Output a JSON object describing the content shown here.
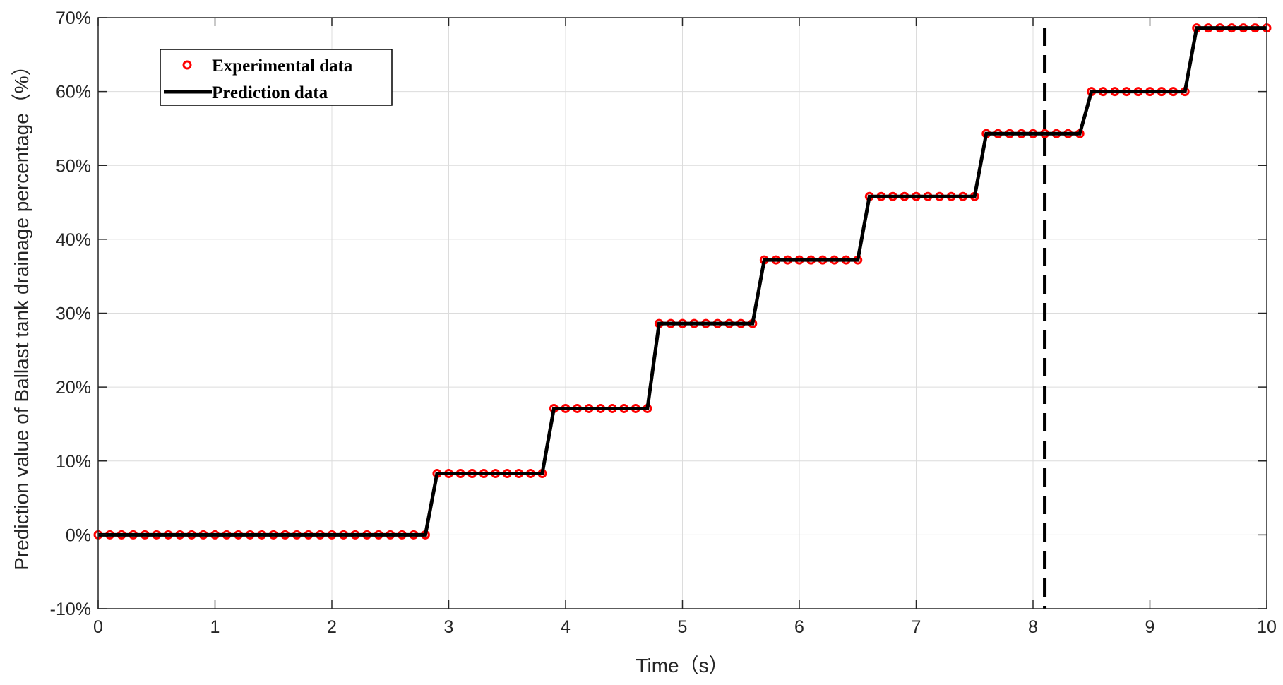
{
  "chart_data": {
    "type": "line",
    "title": "",
    "xlabel": "Time（s）",
    "ylabel": "Prediction value of Ballast tank drainage percentage（%）",
    "xlim": [
      0,
      10
    ],
    "ylim": [
      -10,
      70
    ],
    "x_ticks": [
      0,
      1,
      2,
      3,
      4,
      5,
      6,
      7,
      8,
      9,
      10
    ],
    "x_tick_labels": [
      "0",
      "1",
      "2",
      "3",
      "4",
      "5",
      "6",
      "7",
      "8",
      "9",
      "10"
    ],
    "y_ticks": [
      -10,
      0,
      10,
      20,
      30,
      40,
      50,
      60,
      70
    ],
    "y_tick_labels": [
      "-10%",
      "0%",
      "10%",
      "20%",
      "30%",
      "40%",
      "50%",
      "60%",
      "70%"
    ],
    "grid": true,
    "legend_position": "top-left",
    "vertical_marker": {
      "x": 8.1,
      "style": "dashed",
      "color": "#000000"
    },
    "series": [
      {
        "name": "Experimental data",
        "style": "markers",
        "marker": "circle",
        "color": "#ff0000",
        "points": [
          [
            0,
            0
          ],
          [
            0.1,
            0
          ],
          [
            0.2,
            0
          ],
          [
            0.3,
            0
          ],
          [
            0.4,
            0
          ],
          [
            0.5,
            0
          ],
          [
            0.6,
            0
          ],
          [
            0.7,
            0
          ],
          [
            0.8,
            0
          ],
          [
            0.9,
            0
          ],
          [
            1.0,
            0
          ],
          [
            1.1,
            0
          ],
          [
            1.2,
            0
          ],
          [
            1.3,
            0
          ],
          [
            1.4,
            0
          ],
          [
            1.5,
            0
          ],
          [
            1.6,
            0
          ],
          [
            1.7,
            0
          ],
          [
            1.8,
            0
          ],
          [
            1.9,
            0
          ],
          [
            2.0,
            0
          ],
          [
            2.1,
            0
          ],
          [
            2.2,
            0
          ],
          [
            2.3,
            0
          ],
          [
            2.4,
            0
          ],
          [
            2.5,
            0
          ],
          [
            2.6,
            0
          ],
          [
            2.7,
            0
          ],
          [
            2.8,
            0
          ],
          [
            2.9,
            8.3
          ],
          [
            3.0,
            8.3
          ],
          [
            3.1,
            8.3
          ],
          [
            3.2,
            8.3
          ],
          [
            3.3,
            8.3
          ],
          [
            3.4,
            8.3
          ],
          [
            3.5,
            8.3
          ],
          [
            3.6,
            8.3
          ],
          [
            3.7,
            8.3
          ],
          [
            3.8,
            8.3
          ],
          [
            3.9,
            17.1
          ],
          [
            4.0,
            17.1
          ],
          [
            4.1,
            17.1
          ],
          [
            4.2,
            17.1
          ],
          [
            4.3,
            17.1
          ],
          [
            4.4,
            17.1
          ],
          [
            4.5,
            17.1
          ],
          [
            4.6,
            17.1
          ],
          [
            4.7,
            17.1
          ],
          [
            4.8,
            28.6
          ],
          [
            4.9,
            28.6
          ],
          [
            5.0,
            28.6
          ],
          [
            5.1,
            28.6
          ],
          [
            5.2,
            28.6
          ],
          [
            5.3,
            28.6
          ],
          [
            5.4,
            28.6
          ],
          [
            5.5,
            28.6
          ],
          [
            5.6,
            28.6
          ],
          [
            5.7,
            37.2
          ],
          [
            5.8,
            37.2
          ],
          [
            5.9,
            37.2
          ],
          [
            6.0,
            37.2
          ],
          [
            6.1,
            37.2
          ],
          [
            6.2,
            37.2
          ],
          [
            6.3,
            37.2
          ],
          [
            6.4,
            37.2
          ],
          [
            6.5,
            37.2
          ],
          [
            6.6,
            45.8
          ],
          [
            6.7,
            45.8
          ],
          [
            6.8,
            45.8
          ],
          [
            6.9,
            45.8
          ],
          [
            7.0,
            45.8
          ],
          [
            7.1,
            45.8
          ],
          [
            7.2,
            45.8
          ],
          [
            7.3,
            45.8
          ],
          [
            7.4,
            45.8
          ],
          [
            7.5,
            45.8
          ],
          [
            7.6,
            54.3
          ],
          [
            7.7,
            54.3
          ],
          [
            7.8,
            54.3
          ],
          [
            7.9,
            54.3
          ],
          [
            8.0,
            54.3
          ],
          [
            8.1,
            54.3
          ],
          [
            8.2,
            54.3
          ],
          [
            8.3,
            54.3
          ],
          [
            8.4,
            54.3
          ],
          [
            8.5,
            60.0
          ],
          [
            8.6,
            60.0
          ],
          [
            8.7,
            60.0
          ],
          [
            8.8,
            60.0
          ],
          [
            8.9,
            60.0
          ],
          [
            9.0,
            60.0
          ],
          [
            9.1,
            60.0
          ],
          [
            9.2,
            60.0
          ],
          [
            9.3,
            60.0
          ],
          [
            9.4,
            68.6
          ],
          [
            9.5,
            68.6
          ],
          [
            9.6,
            68.6
          ],
          [
            9.7,
            68.6
          ],
          [
            9.8,
            68.6
          ],
          [
            9.9,
            68.6
          ],
          [
            10.0,
            68.6
          ]
        ]
      },
      {
        "name": "Prediction data",
        "style": "line",
        "color": "#000000",
        "points": [
          [
            0,
            0
          ],
          [
            2.8,
            0
          ],
          [
            2.9,
            8.3
          ],
          [
            3.8,
            8.3
          ],
          [
            3.9,
            17.1
          ],
          [
            4.7,
            17.1
          ],
          [
            4.8,
            28.6
          ],
          [
            5.6,
            28.6
          ],
          [
            5.7,
            37.2
          ],
          [
            6.5,
            37.2
          ],
          [
            6.6,
            45.8
          ],
          [
            7.5,
            45.8
          ],
          [
            7.6,
            54.3
          ],
          [
            8.4,
            54.3
          ],
          [
            8.5,
            60.0
          ],
          [
            9.3,
            60.0
          ],
          [
            9.4,
            68.6
          ],
          [
            10.0,
            68.6
          ]
        ]
      }
    ]
  }
}
